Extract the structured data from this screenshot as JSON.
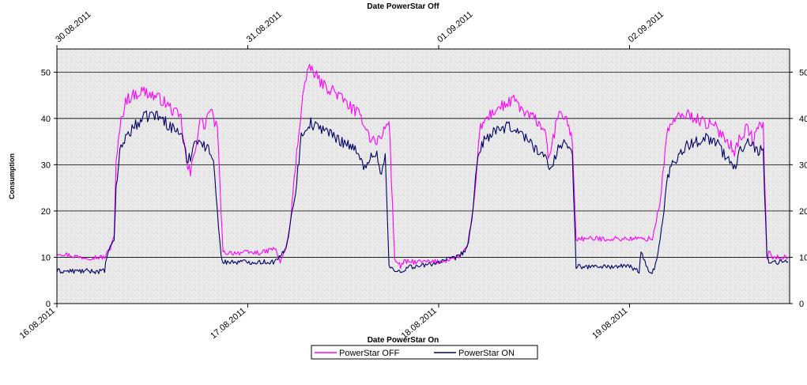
{
  "chart_data": {
    "type": "line",
    "title": "",
    "top_axis": {
      "label": "Date PowerStar Off",
      "ticks": [
        "30.08.2011",
        "31.08.2011",
        "01.09.2011",
        "02.09.2011"
      ]
    },
    "bottom_axis": {
      "label": "Date PowerStar On",
      "ticks": [
        "16.08.2011",
        "17.08.2011",
        "18.08.2011",
        "19.08.2011"
      ]
    },
    "ylabel": "Consumption",
    "ylim": [
      0,
      55
    ],
    "yticks": [
      0,
      10,
      20,
      30,
      40,
      50
    ],
    "grid": true,
    "legend_position": "bottom-center",
    "x_unit": "day offset",
    "xlim": [
      0,
      3.83
    ],
    "series": [
      {
        "name": "PowerStar OFF",
        "color": "#ff00ff",
        "x": [
          0,
          0.12,
          0.25,
          0.28,
          0.3,
          0.31,
          0.33,
          0.36,
          0.4,
          0.45,
          0.5,
          0.55,
          0.6,
          0.65,
          0.68,
          0.7,
          0.73,
          0.75,
          0.77,
          0.8,
          0.82,
          0.84,
          0.86,
          0.87,
          0.9,
          1.0,
          1.08,
          1.14,
          1.17,
          1.2,
          1.22,
          1.25,
          1.28,
          1.3,
          1.33,
          1.36,
          1.4,
          1.45,
          1.5,
          1.55,
          1.6,
          1.64,
          1.67,
          1.7,
          1.72,
          1.74,
          1.77,
          1.79,
          1.8,
          1.82,
          1.85,
          1.9,
          2.0,
          2.1,
          2.15,
          2.18,
          2.2,
          2.22,
          2.25,
          2.3,
          2.35,
          2.4,
          2.45,
          2.5,
          2.55,
          2.58,
          2.62,
          2.65,
          2.67,
          2.7,
          2.72,
          2.74,
          2.75,
          2.77,
          2.8,
          2.9,
          3.0,
          3.1,
          3.12,
          3.14,
          3.16,
          3.18,
          3.2,
          3.25,
          3.3,
          3.35,
          3.4,
          3.45,
          3.5,
          3.55,
          3.58,
          3.62,
          3.65,
          3.68,
          3.7,
          3.72,
          3.73,
          3.75,
          3.8,
          3.83
        ],
        "values": [
          11,
          10,
          10,
          12,
          15,
          30,
          38,
          44,
          45,
          46,
          45,
          44,
          42,
          40,
          30,
          28,
          35,
          40,
          38,
          42,
          40,
          38,
          20,
          11,
          11,
          11,
          11,
          12,
          9,
          12,
          16,
          30,
          42,
          48,
          51,
          49,
          47,
          46,
          44,
          42,
          40,
          36,
          35,
          36,
          38,
          40,
          9,
          9,
          8,
          9,
          9,
          9,
          9,
          10,
          12,
          20,
          30,
          38,
          40,
          42,
          43,
          44,
          41,
          40,
          38,
          31,
          40,
          41,
          40,
          35,
          14,
          14,
          14,
          14,
          14,
          14,
          14,
          14,
          14,
          18,
          22,
          30,
          38,
          40,
          41,
          40,
          39,
          38,
          36,
          33,
          36,
          38,
          35,
          39,
          38,
          10,
          11,
          10,
          10,
          10
        ]
      },
      {
        "name": "PowerStar ON",
        "color": "#000066",
        "x": [
          0,
          0.12,
          0.25,
          0.26,
          0.28,
          0.3,
          0.31,
          0.33,
          0.36,
          0.4,
          0.45,
          0.5,
          0.55,
          0.6,
          0.65,
          0.68,
          0.7,
          0.73,
          0.75,
          0.77,
          0.8,
          0.82,
          0.84,
          0.86,
          0.87,
          0.9,
          1.0,
          1.08,
          1.14,
          1.17,
          1.2,
          1.22,
          1.25,
          1.28,
          1.3,
          1.33,
          1.36,
          1.4,
          1.45,
          1.5,
          1.55,
          1.6,
          1.64,
          1.67,
          1.7,
          1.72,
          1.74,
          1.77,
          1.79,
          1.8,
          1.85,
          1.9,
          2.0,
          2.1,
          2.15,
          2.18,
          2.2,
          2.22,
          2.25,
          2.3,
          2.35,
          2.4,
          2.45,
          2.5,
          2.55,
          2.58,
          2.62,
          2.65,
          2.67,
          2.7,
          2.72,
          2.74,
          2.75,
          2.8,
          2.9,
          3.0,
          3.05,
          3.06,
          3.1,
          3.13,
          3.16,
          3.18,
          3.2,
          3.25,
          3.3,
          3.35,
          3.4,
          3.45,
          3.5,
          3.55,
          3.58,
          3.62,
          3.65,
          3.68,
          3.7,
          3.72,
          3.73,
          3.75,
          3.8,
          3.83
        ],
        "values": [
          7,
          7,
          7,
          10,
          12,
          14,
          25,
          33,
          36,
          38,
          40,
          41,
          40,
          38,
          37,
          31,
          32,
          36,
          35,
          34,
          33,
          32,
          20,
          10,
          9,
          9,
          9,
          9,
          9,
          10,
          12,
          17,
          24,
          36,
          38,
          39,
          38,
          38,
          36,
          35,
          34,
          30,
          31,
          33,
          28,
          32,
          8,
          7,
          7,
          7,
          8,
          8,
          9,
          10,
          12,
          20,
          30,
          34,
          36,
          37,
          38,
          38,
          36,
          34,
          32,
          29,
          33,
          35,
          34,
          32,
          8,
          8,
          8,
          8,
          8,
          8,
          7,
          11,
          7,
          7,
          14,
          20,
          28,
          32,
          34,
          35,
          36,
          35,
          32,
          29,
          33,
          36,
          34,
          33,
          33,
          10,
          9,
          9,
          9,
          9
        ]
      }
    ]
  }
}
